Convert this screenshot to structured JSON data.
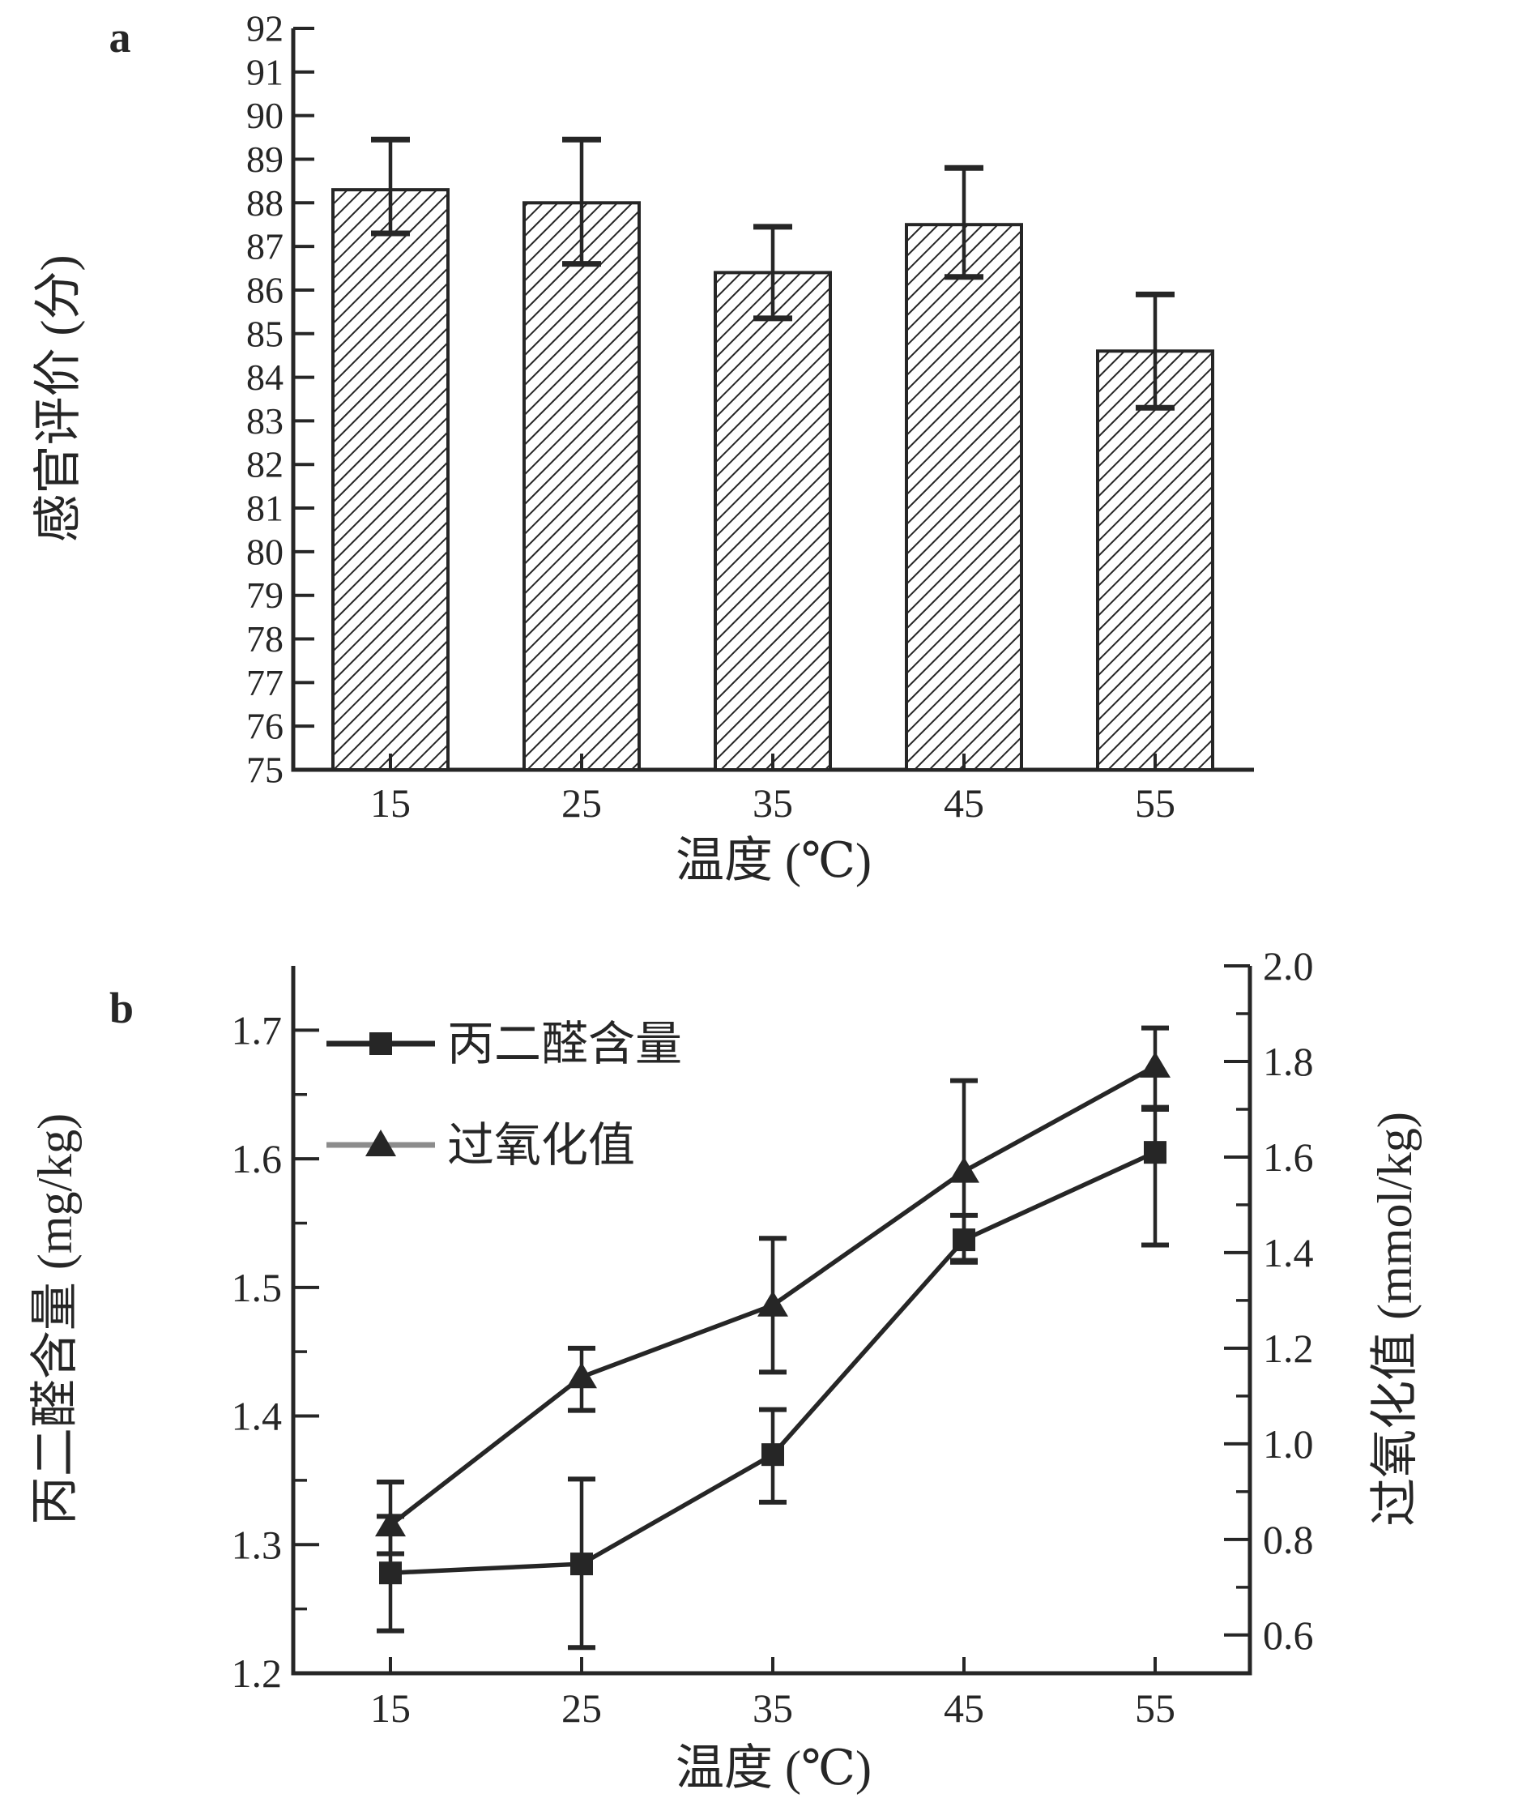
{
  "figure": {
    "background": "#ffffff",
    "ink_color": "#262626",
    "gray_color": "#8c8c8c"
  },
  "chart_data": [
    {
      "id": "panel_a",
      "type": "bar",
      "panel_label": "a",
      "xlabel": "温度 (℃)",
      "ylabel": "感官评价 (分)",
      "categories": [
        "15",
        "25",
        "35",
        "45",
        "55"
      ],
      "values": [
        88.3,
        88.0,
        86.4,
        87.5,
        84.6
      ],
      "error_upper": [
        89.45,
        89.45,
        87.45,
        88.8,
        85.9
      ],
      "error_lower": [
        87.3,
        86.6,
        85.35,
        86.3,
        83.3
      ],
      "ylim": [
        75,
        92
      ],
      "ytick_step": 1,
      "yticklabels": [
        "75",
        "76",
        "77",
        "78",
        "79",
        "80",
        "81",
        "82",
        "83",
        "84",
        "85",
        "86",
        "87",
        "88",
        "89",
        "90",
        "91",
        "92"
      ],
      "grid": false,
      "bar_style": {
        "fill": "diagonal-hatch",
        "stroke": "#262626"
      }
    },
    {
      "id": "panel_b",
      "type": "line",
      "panel_label": "b",
      "xlabel": "温度 (℃)",
      "ylabel_left": "丙二醛含量 (mg/kg)",
      "ylabel_right": "过氧化值 (mmol/kg)",
      "categories": [
        "15",
        "25",
        "35",
        "45",
        "55"
      ],
      "ylim_left": [
        1.2,
        1.75
      ],
      "yticks_left": [
        1.2,
        1.3,
        1.4,
        1.5,
        1.6,
        1.7
      ],
      "ytick_minor_step_left": 0.05,
      "ylim_right": [
        0.52,
        2.0
      ],
      "yticks_right": [
        0.6,
        0.8,
        1.0,
        1.2,
        1.4,
        1.6,
        1.8,
        2.0
      ],
      "ytick_minor_step_right": 0.1,
      "grid": false,
      "legend_position": "upper-left",
      "series": [
        {
          "name": "丙二醛含量",
          "axis": "left",
          "marker": "square",
          "color": "#262626",
          "legend_line_color": "#262626",
          "values": [
            1.278,
            1.285,
            1.37,
            1.537,
            1.605
          ],
          "error_upper": [
            1.322,
            1.351,
            1.405,
            1.556,
            1.64
          ],
          "error_lower": [
            1.233,
            1.22,
            1.333,
            1.521,
            1.533
          ]
        },
        {
          "name": "过氧化值",
          "axis": "right",
          "marker": "triangle",
          "color": "#262626",
          "legend_line_color": "#8c8c8c",
          "values": [
            0.83,
            1.14,
            1.29,
            1.57,
            1.79
          ],
          "error_upper": [
            0.92,
            1.2,
            1.43,
            1.76,
            1.87
          ],
          "error_lower": [
            0.77,
            1.07,
            1.15,
            1.38,
            1.7
          ]
        }
      ]
    }
  ]
}
